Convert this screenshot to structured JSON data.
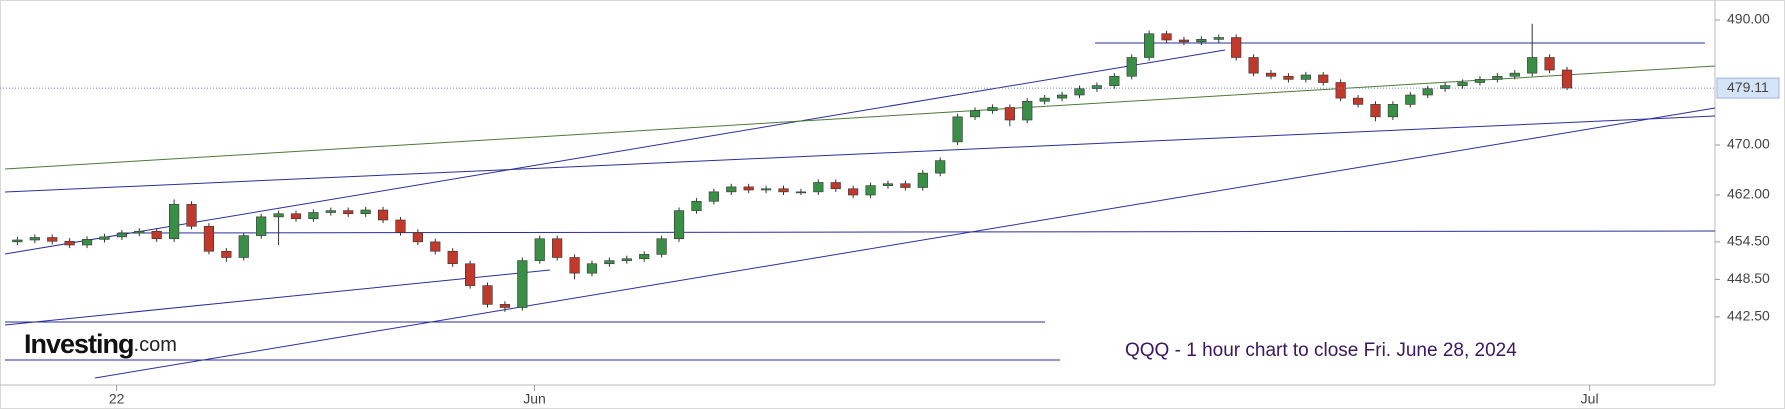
{
  "chart_data": {
    "type": "candlestick",
    "logo": "Investing",
    "logo_suffix": ".com",
    "annotation": "QQQ - 1 hour chart to close Fri. June 28, 2024",
    "up_color": "#3a8f47",
    "down_color": "#c0392b",
    "x": [
      0,
      1,
      2,
      3,
      4,
      5,
      6,
      7,
      8,
      9,
      10,
      11,
      12,
      13,
      14,
      15,
      16,
      17,
      18,
      19,
      20,
      21,
      22,
      23,
      24,
      25,
      26,
      27,
      28,
      29,
      30,
      31,
      32,
      33,
      34,
      35,
      36,
      37,
      38,
      39,
      40,
      41,
      42,
      43,
      44,
      45,
      46,
      47,
      48,
      49,
      50,
      51,
      52,
      53,
      54,
      55,
      56,
      57,
      58,
      59,
      60,
      61,
      62,
      63,
      64,
      65,
      66,
      67,
      68,
      69,
      70,
      71,
      72,
      73,
      74,
      75,
      76,
      77,
      78,
      79,
      80,
      81,
      82,
      83,
      84,
      85,
      86,
      87,
      88,
      89
    ],
    "open": [
      454.5,
      454.8,
      455.2,
      454.6,
      454.0,
      454.9,
      455.3,
      455.9,
      456.2,
      455.0,
      460.5,
      457.0,
      453.0,
      452.0,
      455.5,
      458.5,
      459.0,
      458.2,
      459.2,
      459.5,
      459.0,
      459.6,
      458.0,
      456.0,
      454.5,
      453.0,
      451.0,
      447.5,
      444.5,
      444.0,
      451.5,
      455.0,
      452.0,
      449.5,
      451.0,
      451.5,
      451.8,
      452.5,
      455.0,
      459.5,
      461.0,
      462.5,
      463.3,
      462.8,
      463.0,
      462.5,
      462.5,
      464.0,
      463.0,
      462.0,
      463.5,
      463.8,
      463.2,
      465.5,
      470.5,
      474.5,
      475.5,
      476.0,
      474.0,
      477.0,
      477.5,
      478.0,
      479.0,
      479.5,
      481.0,
      484.0,
      487.8,
      486.8,
      486.5,
      486.9,
      487.2,
      484.0,
      481.5,
      481.0,
      480.5,
      481.2,
      480.0,
      477.5,
      476.5,
      474.5,
      476.5,
      478.0,
      479.0,
      479.5,
      480.0,
      480.5,
      481.0,
      481.5,
      484.0,
      482.0
    ],
    "high": [
      455.3,
      455.7,
      455.7,
      455.1,
      455.4,
      455.8,
      456.4,
      456.7,
      456.7,
      461.3,
      461.0,
      457.5,
      453.5,
      456.0,
      459.0,
      459.5,
      459.5,
      459.7,
      460.0,
      460.0,
      460.1,
      460.1,
      458.5,
      456.5,
      455.0,
      453.5,
      451.5,
      448.0,
      445.0,
      452.0,
      455.5,
      455.5,
      452.5,
      451.5,
      452.0,
      452.3,
      453.0,
      455.5,
      460.0,
      461.5,
      463.0,
      463.8,
      463.8,
      463.5,
      463.5,
      463.0,
      464.5,
      464.5,
      463.5,
      464.0,
      464.3,
      464.3,
      466.0,
      468.0,
      475.0,
      476.0,
      476.5,
      476.5,
      477.5,
      478.0,
      478.5,
      479.5,
      480.0,
      481.5,
      484.5,
      488.3,
      488.3,
      487.3,
      487.4,
      487.7,
      487.7,
      484.5,
      482.0,
      481.5,
      481.7,
      481.7,
      480.5,
      478.0,
      477.0,
      477.0,
      478.5,
      479.5,
      480.0,
      480.5,
      481.0,
      481.5,
      482.0,
      489.4,
      484.5,
      482.5
    ],
    "low": [
      454.0,
      454.3,
      454.1,
      453.5,
      453.5,
      454.4,
      454.8,
      455.4,
      454.5,
      454.5,
      456.5,
      452.5,
      451.3,
      451.5,
      455.0,
      454.0,
      457.7,
      457.7,
      458.7,
      458.5,
      458.5,
      457.5,
      455.5,
      454.0,
      452.5,
      450.5,
      447.0,
      444.0,
      443.3,
      443.5,
      451.0,
      451.5,
      448.5,
      449.0,
      450.5,
      451.0,
      451.3,
      452.0,
      454.5,
      459.0,
      460.5,
      462.0,
      462.3,
      462.3,
      462.0,
      462.0,
      462.0,
      462.5,
      461.5,
      461.5,
      463.0,
      462.7,
      462.7,
      465.0,
      470.0,
      474.0,
      475.0,
      473.0,
      473.5,
      476.5,
      477.0,
      477.5,
      478.5,
      479.0,
      480.5,
      483.5,
      486.3,
      486.0,
      486.0,
      486.4,
      483.5,
      481.0,
      480.5,
      480.0,
      480.0,
      479.5,
      477.0,
      476.0,
      473.8,
      474.0,
      476.0,
      477.5,
      478.5,
      479.0,
      479.5,
      480.0,
      480.5,
      481.0,
      481.5,
      478.8
    ],
    "close": [
      454.8,
      455.2,
      454.6,
      454.0,
      454.9,
      455.3,
      455.9,
      456.2,
      455.0,
      460.5,
      457.0,
      453.0,
      452.0,
      455.5,
      458.5,
      459.0,
      458.2,
      459.2,
      459.5,
      459.0,
      459.6,
      458.0,
      456.0,
      454.5,
      453.0,
      451.0,
      447.5,
      444.5,
      444.0,
      451.5,
      455.0,
      452.0,
      449.5,
      451.0,
      451.5,
      451.8,
      452.5,
      455.0,
      459.5,
      461.0,
      462.5,
      463.3,
      462.8,
      463.0,
      462.5,
      462.5,
      464.0,
      463.0,
      462.0,
      463.5,
      463.8,
      463.2,
      465.5,
      467.5,
      474.5,
      475.5,
      476.0,
      474.0,
      477.0,
      477.5,
      478.0,
      479.0,
      479.5,
      481.0,
      484.0,
      487.8,
      486.8,
      486.5,
      486.9,
      487.2,
      484.0,
      481.5,
      481.0,
      480.5,
      481.2,
      480.0,
      477.5,
      476.5,
      474.5,
      476.5,
      478.0,
      479.0,
      479.5,
      480.0,
      480.5,
      481.0,
      481.5,
      484.0,
      482.0,
      479.11
    ],
    "xlim": [
      -1,
      97.5
    ],
    "xticks": [
      {
        "value": 5.7,
        "label": "22"
      },
      {
        "value": 29.7,
        "label": "Jun"
      },
      {
        "value": 90.3,
        "label": "Jul"
      }
    ],
    "ylim": [
      431.6,
      493.2
    ],
    "yticks": [
      {
        "value": 490,
        "label": "490.00"
      },
      {
        "value": 470,
        "label": "470.00"
      },
      {
        "value": 462,
        "label": "462.00"
      },
      {
        "value": 454.5,
        "label": "454.50"
      },
      {
        "value": 448.5,
        "label": "448.50"
      },
      {
        "value": 442.5,
        "label": "442.50"
      }
    ],
    "grid": false
  }
}
